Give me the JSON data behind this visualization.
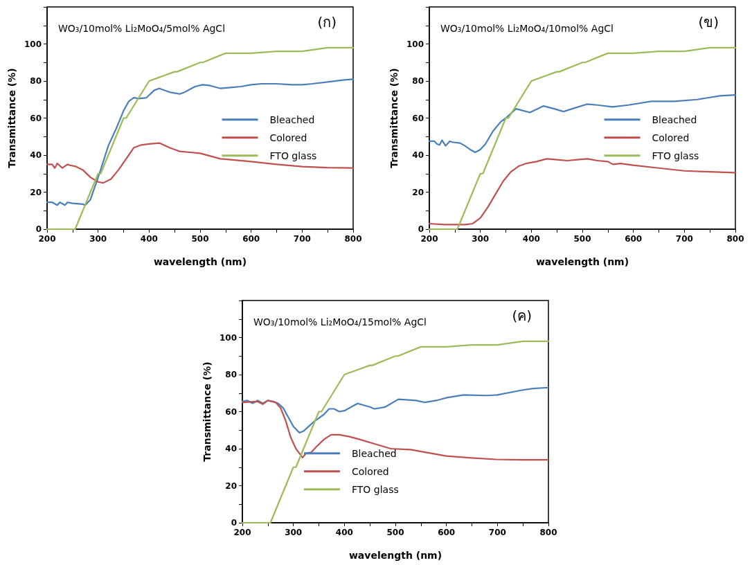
{
  "chart_data": [
    {
      "type": "line",
      "title": "WO₃/10mol% Li₂MoO₄/5mol% AgCl",
      "annotations": [
        "(ก)"
      ],
      "xlabel": "wavelength (nm)",
      "ylabel": "Transmittance (%)",
      "xlim": [
        200,
        800
      ],
      "ylim": [
        0,
        120
      ],
      "xticks": [
        200,
        {
          "value": 250,
          "label": null
        },
        300,
        {
          "value": 350,
          "label": null
        },
        400,
        {
          "value": 450,
          "label": null
        },
        500,
        {
          "value": 550,
          "label": null
        },
        600,
        {
          "value": 650,
          "label": null
        },
        700,
        {
          "value": 750,
          "label": null
        },
        800
      ],
      "yticks": [
        0,
        {
          "value": 10,
          "label": null
        },
        20,
        {
          "value": 30,
          "label": null
        },
        40,
        {
          "value": 50,
          "label": null
        },
        60,
        {
          "value": 70,
          "label": null
        },
        80,
        {
          "value": 90,
          "label": null
        },
        100,
        {
          "value": 110,
          "label": null
        },
        {
          "value": 120,
          "label": null
        }
      ],
      "grid": false,
      "legend": "right",
      "marker": "none",
      "line_style": "solid",
      "series": [
        {
          "name": "Bleached",
          "color": "#4a7ebb",
          "x": [
            200,
            210,
            220,
            225,
            235,
            240,
            250,
            270,
            275,
            285,
            295,
            305,
            320,
            335,
            350,
            360,
            370,
            380,
            395,
            410,
            420,
            440,
            460,
            470,
            490,
            505,
            520,
            540,
            560,
            580,
            600,
            620,
            650,
            680,
            700,
            720,
            750,
            780,
            800
          ],
          "values": [
            14.5,
            14.5,
            13,
            14.5,
            13,
            14.5,
            14,
            13.5,
            13,
            16,
            24,
            32,
            45,
            54,
            64,
            69,
            71,
            70.5,
            71,
            75,
            76,
            74,
            73,
            74,
            77,
            78,
            77.5,
            76,
            76.5,
            77,
            78,
            78.5,
            78.5,
            78,
            78,
            78.5,
            79.5,
            80.5,
            81
          ]
        },
        {
          "name": "Colored",
          "color": "#c0504d",
          "x": [
            200,
            210,
            215,
            220,
            230,
            240,
            245,
            255,
            270,
            285,
            300,
            310,
            325,
            340,
            355,
            370,
            385,
            400,
            420,
            440,
            460,
            480,
            500,
            520,
            540,
            560,
            600,
            650,
            700,
            750,
            800
          ],
          "values": [
            35,
            35,
            33,
            35.5,
            33,
            35,
            34.5,
            34,
            32,
            28,
            25.5,
            25,
            27,
            32,
            38,
            44,
            45.5,
            46,
            46.5,
            44,
            42,
            41.5,
            41,
            39.5,
            38,
            37.5,
            36.5,
            35,
            33.8,
            33.2,
            33
          ]
        },
        {
          "name": "FTO glass",
          "color": "#9bbb59",
          "x": [
            200,
            255,
            300,
            305,
            350,
            355,
            400,
            450,
            455,
            500,
            505,
            550,
            600,
            650,
            700,
            750,
            800
          ],
          "values": [
            0,
            0,
            30,
            30,
            60,
            60,
            80,
            85,
            85,
            90,
            90,
            95,
            95,
            96,
            96,
            98,
            98
          ]
        }
      ]
    },
    {
      "type": "line",
      "title": "WO₃/10mol% Li₂MoO₄/10mol% AgCl",
      "annotations": [
        "(ข)"
      ],
      "xlabel": "wavelength (nm)",
      "ylabel": "Transmittance (%)",
      "xlim": [
        200,
        800
      ],
      "ylim": [
        0,
        120
      ],
      "xticks": [
        200,
        {
          "value": 250,
          "label": null
        },
        300,
        {
          "value": 350,
          "label": null
        },
        400,
        {
          "value": 450,
          "label": null
        },
        500,
        {
          "value": 550,
          "label": null
        },
        600,
        {
          "value": 650,
          "label": null
        },
        700,
        {
          "value": 750,
          "label": null
        },
        800
      ],
      "yticks": [
        0,
        {
          "value": 10,
          "label": null
        },
        20,
        {
          "value": 30,
          "label": null
        },
        40,
        {
          "value": 50,
          "label": null
        },
        60,
        {
          "value": 70,
          "label": null
        },
        80,
        {
          "value": 90,
          "label": null
        },
        100,
        {
          "value": 110,
          "label": null
        },
        {
          "value": 120,
          "label": null
        }
      ],
      "grid": false,
      "legend": "right",
      "marker": "none",
      "line_style": "solid",
      "series": [
        {
          "name": "Bleached",
          "color": "#4a7ebb",
          "x": [
            200,
            210,
            215,
            220,
            225,
            232,
            240,
            245,
            260,
            270,
            280,
            290,
            300,
            310,
            325,
            340,
            350,
            370,
            397,
            424,
            445,
            463,
            480,
            509,
            530,
            559,
            590,
            635,
            680,
            725,
            770,
            800
          ],
          "values": [
            47.5,
            47.5,
            46,
            45.5,
            48,
            45,
            47.5,
            47,
            46.5,
            45,
            43,
            41.5,
            43,
            46,
            53,
            58,
            60,
            65,
            63,
            66.5,
            65,
            63.5,
            65,
            67.5,
            67,
            66,
            67,
            69,
            69,
            70,
            72,
            72.5
          ]
        },
        {
          "name": "Colored",
          "color": "#c0504d",
          "x": [
            200,
            230,
            270,
            285,
            300,
            315,
            330,
            345,
            360,
            375,
            390,
            410,
            430,
            450,
            470,
            490,
            510,
            530,
            550,
            560,
            575,
            600,
            650,
            700,
            750,
            800
          ],
          "values": [
            3,
            2.5,
            2.5,
            3,
            6,
            12,
            19,
            26,
            31,
            34,
            35.5,
            36.5,
            38,
            37.5,
            37,
            37.5,
            38,
            37,
            36.5,
            35,
            35.5,
            34.5,
            33,
            31.5,
            31,
            30.5
          ]
        },
        {
          "name": "FTO glass",
          "color": "#9bbb59",
          "x": [
            200,
            255,
            300,
            305,
            350,
            355,
            400,
            450,
            455,
            500,
            505,
            550,
            600,
            650,
            700,
            750,
            800
          ],
          "values": [
            0,
            0,
            30,
            30,
            60,
            60,
            80,
            85,
            85,
            90,
            90,
            95,
            95,
            96,
            96,
            98,
            98
          ]
        }
      ]
    },
    {
      "type": "line",
      "title": "WO₃/10mol% Li₂MoO₄/15mol% AgCl",
      "annotations": [
        "(ค)"
      ],
      "xlabel": "wavelength (nm)",
      "ylabel": "Transmittance (%)",
      "xlim": [
        200,
        800
      ],
      "ylim": [
        0,
        120
      ],
      "xticks": [
        200,
        {
          "value": 250,
          "label": null
        },
        300,
        {
          "value": 350,
          "label": null
        },
        400,
        {
          "value": 450,
          "label": null
        },
        500,
        {
          "value": 550,
          "label": null
        },
        600,
        {
          "value": 650,
          "label": null
        },
        700,
        {
          "value": 750,
          "label": null
        },
        800
      ],
      "yticks": [
        0,
        {
          "value": 10,
          "label": null
        },
        20,
        {
          "value": 30,
          "label": null
        },
        40,
        {
          "value": 50,
          "label": null
        },
        60,
        {
          "value": 70,
          "label": null
        },
        80,
        {
          "value": 90,
          "label": null
        },
        100,
        {
          "value": 110,
          "label": null
        },
        {
          "value": 120,
          "label": null
        }
      ],
      "grid": false,
      "legend": "bottom left",
      "marker": "none",
      "line_style": "solid",
      "series": [
        {
          "name": "Bleached",
          "color": "#4a7ebb",
          "x": [
            200,
            210,
            220,
            230,
            240,
            250,
            260,
            270,
            280,
            290,
            300,
            312,
            320,
            330,
            340,
            350,
            360,
            370,
            380,
            390,
            400,
            426,
            450,
            459,
            480,
            506,
            540,
            558,
            580,
            600,
            634,
            679,
            700,
            746,
            770,
            800
          ],
          "values": [
            65.5,
            66,
            64.5,
            66,
            64.5,
            66,
            65.5,
            64.5,
            62,
            57,
            52,
            48.6,
            49.5,
            52,
            54.5,
            56.5,
            58.5,
            61.5,
            61.5,
            60,
            60.5,
            64.4,
            62.5,
            61.5,
            62.5,
            66.7,
            66,
            65,
            66,
            67.5,
            69,
            68.7,
            69,
            71.5,
            72.5,
            73
          ]
        },
        {
          "name": "Colored",
          "color": "#c0504d",
          "x": [
            200,
            230,
            240,
            250,
            265,
            275,
            285,
            295,
            305,
            318,
            325,
            335,
            345,
            360,
            374,
            390,
            410,
            430,
            460,
            491,
            530,
            560,
            600,
            650,
            697,
            750,
            800
          ],
          "values": [
            65,
            65.5,
            64,
            66,
            65,
            62,
            55,
            46,
            40,
            35.2,
            37.5,
            38,
            41,
            45,
            47.5,
            47.5,
            46.5,
            45,
            42.5,
            40,
            39.5,
            38,
            36,
            35,
            34.2,
            34,
            34
          ]
        },
        {
          "name": "FTO glass",
          "color": "#9bbb59",
          "x": [
            200,
            255,
            300,
            305,
            350,
            355,
            400,
            450,
            455,
            500,
            505,
            550,
            600,
            650,
            700,
            750,
            800
          ],
          "values": [
            0,
            0,
            30,
            30,
            60,
            60,
            80,
            85,
            85,
            90,
            90,
            95,
            95,
            96,
            96,
            98,
            98
          ]
        }
      ]
    }
  ]
}
